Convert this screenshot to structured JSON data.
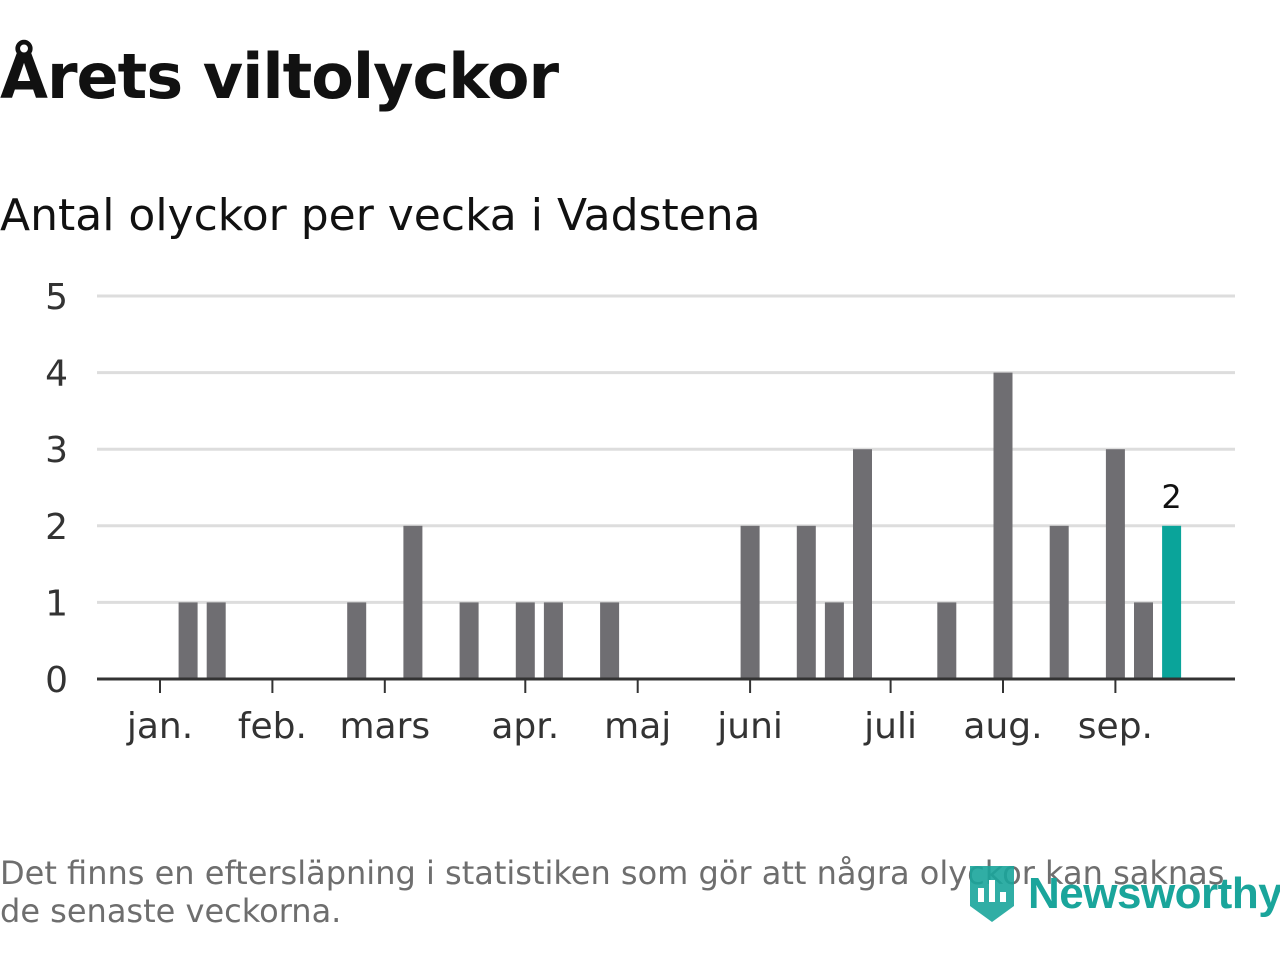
{
  "header": {
    "title": "Årets viltolyckor",
    "subtitle": "Antal olyckor per vecka i Vadstena"
  },
  "footer": {
    "note": "Det finns en eftersläpning i statistiken som gör att några olyckor kan saknas de senaste veckorna.",
    "brand": "Newsworthy",
    "logo_icon": "newsworthy-logo-icon"
  },
  "colors": {
    "bar": "#6f6e72",
    "highlight": "#0aa49a",
    "grid": "#dddddd",
    "axis": "#333333",
    "brand": "#1aa59b"
  },
  "chart_data": {
    "type": "bar",
    "title": "Antal olyckor per vecka i Vadstena",
    "xlabel": "",
    "ylabel": "",
    "ylim": [
      0,
      5
    ],
    "yticks": [
      "0",
      "1",
      "2",
      "3",
      "4",
      "5"
    ],
    "grid": true,
    "legend": "none",
    "x_unit": "week",
    "month_labels": [
      "jan.",
      "feb.",
      "mars",
      "apr.",
      "maj",
      "juni",
      "juli",
      "aug.",
      "sep."
    ],
    "month_label_weeks": [
      1,
      5,
      9,
      14,
      18,
      22,
      27,
      31,
      35
    ],
    "weeks": [
      1,
      2,
      3,
      4,
      5,
      6,
      7,
      8,
      9,
      10,
      11,
      12,
      13,
      14,
      15,
      16,
      17,
      18,
      19,
      20,
      21,
      22,
      23,
      24,
      25,
      26,
      27,
      28,
      29,
      30,
      31,
      32,
      33,
      34,
      35,
      36,
      37,
      38
    ],
    "values": [
      0,
      1,
      1,
      0,
      0,
      0,
      0,
      1,
      0,
      2,
      0,
      1,
      0,
      1,
      1,
      0,
      1,
      0,
      0,
      0,
      0,
      2,
      0,
      2,
      1,
      3,
      0,
      0,
      1,
      0,
      4,
      0,
      2,
      0,
      3,
      1,
      2,
      0
    ],
    "highlight_week": 37,
    "data_labels": [
      {
        "week": 37,
        "label": "2"
      }
    ]
  }
}
